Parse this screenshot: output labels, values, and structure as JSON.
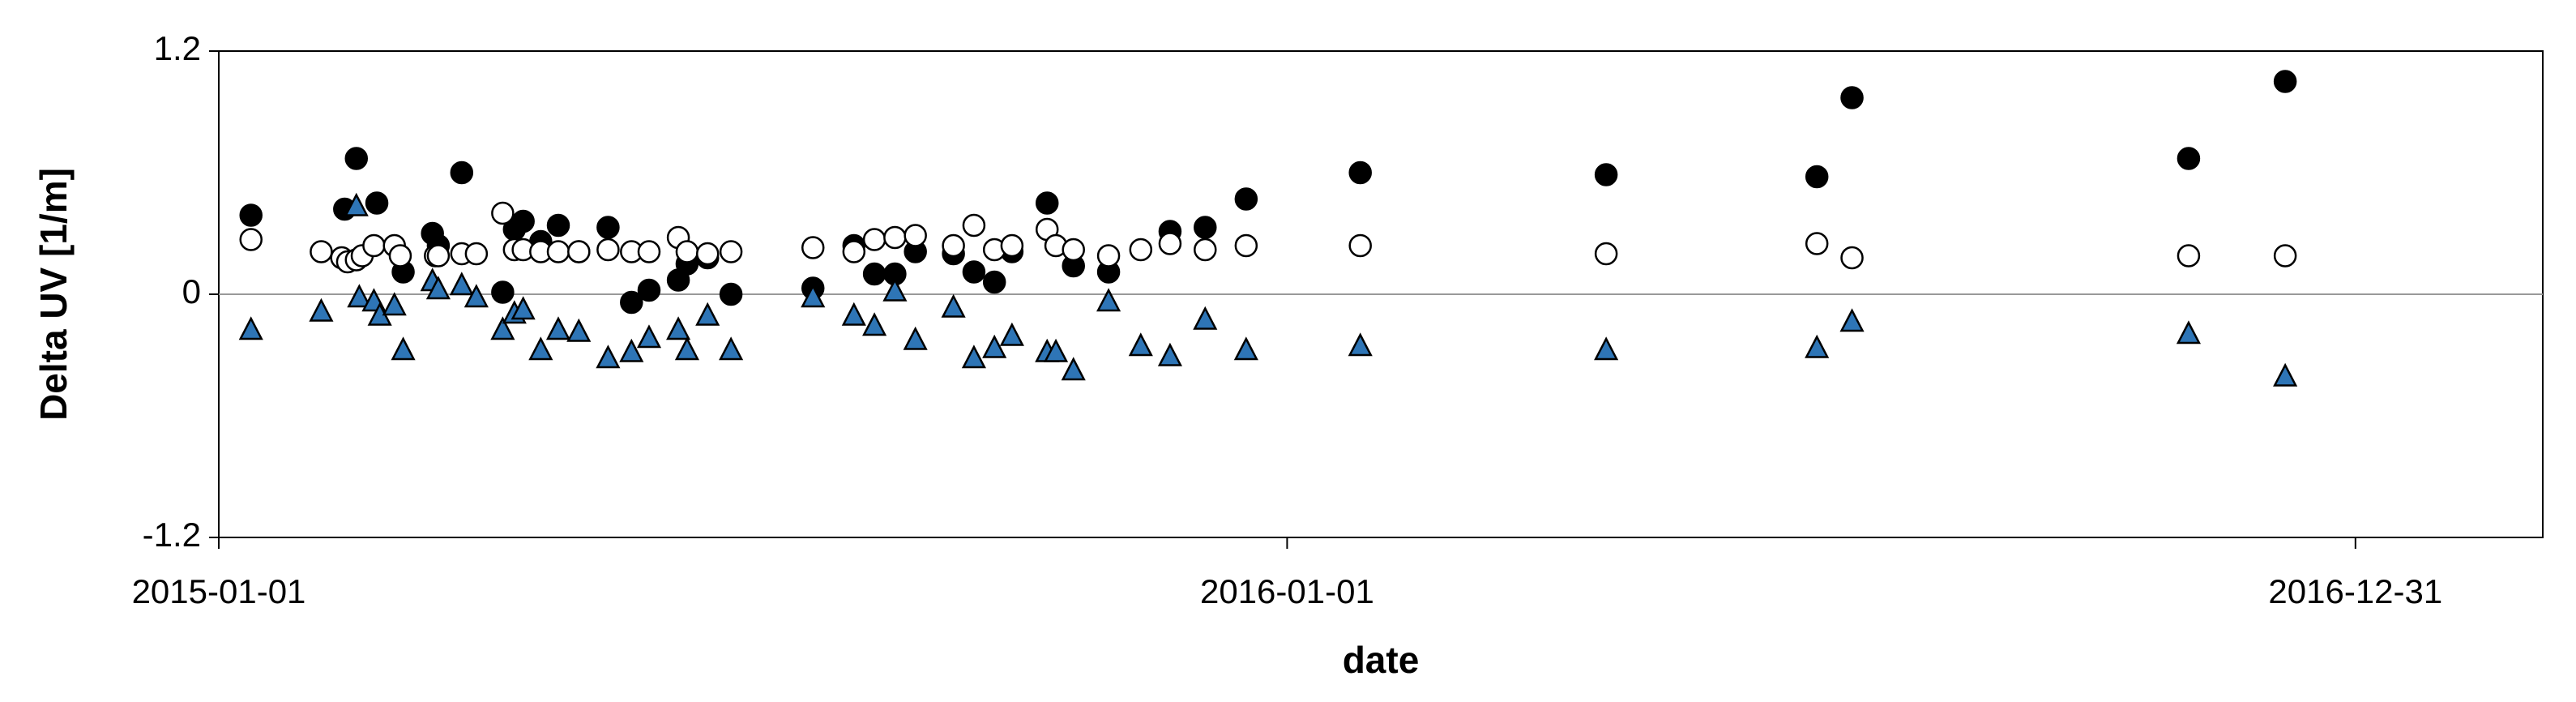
{
  "chart_data": {
    "type": "scatter",
    "ylabel": "Delta UV [1/m]",
    "xlabel": "date",
    "xlim": [
      "2015-01-01",
      "2017-03-05"
    ],
    "xticks": [
      "2015-01-01",
      "2016-01-01",
      "2016-12-31"
    ],
    "ylim": [
      -1.2,
      1.2
    ],
    "yticks": [
      1.2,
      0,
      -1.2
    ],
    "grid": false,
    "series": [
      {
        "color": "#000000",
        "marker": "circle",
        "x": [
          "2015-01-12",
          "2015-02-17",
          "2015-02-13",
          "2015-02-24",
          "2015-03-05",
          "2015-03-15",
          "2015-03-17",
          "2015-03-25",
          "2015-04-08",
          "2015-04-12",
          "2015-04-15",
          "2015-04-21",
          "2015-04-27",
          "2015-05-04",
          "2015-05-14",
          "2015-05-22",
          "2015-05-28",
          "2015-06-07",
          "2015-06-10",
          "2015-06-17",
          "2015-06-25",
          "2015-07-23",
          "2015-08-06",
          "2015-08-13",
          "2015-08-20",
          "2015-08-27",
          "2015-09-09",
          "2015-09-16",
          "2015-09-23",
          "2015-09-29",
          "2015-10-11",
          "2015-10-20",
          "2015-11-01",
          "2015-11-22",
          "2015-12-04",
          "2015-12-18",
          "2016-01-26",
          "2016-04-19",
          "2016-06-30",
          "2016-07-12",
          "2016-11-04",
          "2016-12-07"
        ],
        "values": [
          0.39,
          0.67,
          0.42,
          0.45,
          0.11,
          0.3,
          0.24,
          0.6,
          0.01,
          0.32,
          0.36,
          0.26,
          0.34,
          0.21,
          0.33,
          -0.04,
          0.02,
          0.07,
          0.15,
          0.18,
          0.0,
          0.03,
          0.24,
          0.1,
          0.1,
          0.21,
          0.2,
          0.11,
          0.06,
          0.21,
          0.45,
          0.14,
          0.11,
          0.31,
          0.33,
          0.47,
          0.6,
          0.59,
          0.58,
          0.97,
          0.67,
          1.05
        ]
      },
      {
        "color": "#ffffff",
        "marker": "circle",
        "x": [
          "2015-01-12",
          "2015-02-05",
          "2015-02-12",
          "2015-02-14",
          "2015-02-17",
          "2015-02-19",
          "2015-02-23",
          "2015-03-02",
          "2015-03-04",
          "2015-03-16",
          "2015-03-17",
          "2015-03-25",
          "2015-03-30",
          "2015-04-08",
          "2015-04-12",
          "2015-04-15",
          "2015-04-21",
          "2015-04-27",
          "2015-05-04",
          "2015-05-14",
          "2015-05-22",
          "2015-05-28",
          "2015-06-07",
          "2015-06-10",
          "2015-06-17",
          "2015-06-25",
          "2015-07-23",
          "2015-08-06",
          "2015-08-13",
          "2015-08-20",
          "2015-08-27",
          "2015-09-09",
          "2015-09-16",
          "2015-09-23",
          "2015-09-29",
          "2015-10-11",
          "2015-10-14",
          "2015-10-20",
          "2015-11-01",
          "2015-11-12",
          "2015-11-22",
          "2015-12-04",
          "2015-12-18",
          "2016-01-26",
          "2016-04-19",
          "2016-06-30",
          "2016-07-12",
          "2016-11-04",
          "2016-12-07"
        ],
        "values": [
          0.27,
          0.21,
          0.18,
          0.16,
          0.17,
          0.19,
          0.24,
          0.24,
          0.19,
          0.19,
          0.19,
          0.2,
          0.2,
          0.4,
          0.22,
          0.22,
          0.21,
          0.21,
          0.21,
          0.22,
          0.21,
          0.21,
          0.28,
          0.21,
          0.2,
          0.21,
          0.23,
          0.21,
          0.27,
          0.28,
          0.29,
          0.24,
          0.34,
          0.22,
          0.24,
          0.32,
          0.24,
          0.22,
          0.19,
          0.22,
          0.25,
          0.22,
          0.24,
          0.24,
          0.2,
          0.25,
          0.18,
          0.19,
          0.19
        ]
      },
      {
        "color": "#2e75b6",
        "marker": "triangle",
        "x": [
          "2015-01-12",
          "2015-02-05",
          "2015-02-17",
          "2015-02-18",
          "2015-02-23",
          "2015-02-25",
          "2015-03-02",
          "2015-03-05",
          "2015-03-15",
          "2015-03-17",
          "2015-03-25",
          "2015-03-30",
          "2015-04-08",
          "2015-04-12",
          "2015-04-15",
          "2015-04-21",
          "2015-04-27",
          "2015-05-04",
          "2015-05-14",
          "2015-05-22",
          "2015-05-28",
          "2015-06-07",
          "2015-06-10",
          "2015-06-17",
          "2015-06-25",
          "2015-07-23",
          "2015-08-06",
          "2015-08-13",
          "2015-08-20",
          "2015-08-27",
          "2015-09-09",
          "2015-09-16",
          "2015-09-23",
          "2015-09-29",
          "2015-10-11",
          "2015-10-14",
          "2015-10-20",
          "2015-11-01",
          "2015-11-12",
          "2015-11-22",
          "2015-12-04",
          "2015-12-18",
          "2016-01-26",
          "2016-04-19",
          "2016-06-30",
          "2016-07-12",
          "2016-11-04",
          "2016-12-07"
        ],
        "values": [
          -0.18,
          -0.09,
          0.43,
          -0.02,
          -0.04,
          -0.11,
          -0.06,
          -0.28,
          0.06,
          0.02,
          0.04,
          -0.02,
          -0.18,
          -0.1,
          -0.08,
          -0.28,
          -0.18,
          -0.19,
          -0.32,
          -0.29,
          -0.22,
          -0.18,
          -0.28,
          -0.11,
          -0.28,
          -0.02,
          -0.11,
          -0.16,
          0.01,
          -0.23,
          -0.07,
          -0.32,
          -0.27,
          -0.21,
          -0.29,
          -0.29,
          -0.38,
          -0.04,
          -0.26,
          -0.31,
          -0.13,
          -0.28,
          -0.26,
          -0.28,
          -0.27,
          -0.14,
          -0.2,
          -0.41
        ]
      }
    ]
  }
}
